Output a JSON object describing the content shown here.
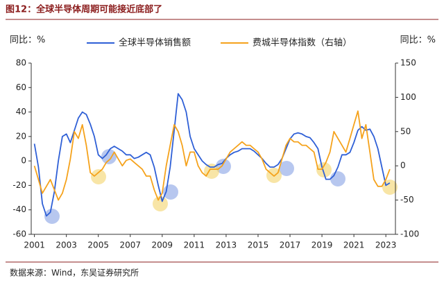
{
  "chart_data": {
    "type": "line",
    "title": "图12：全球半导体周期可能接近底部了",
    "y_label": "同比：%",
    "y2_label": "同比：%",
    "source": "数据来源：Wind，东吴证券研究所",
    "x": [
      2001,
      2001.25,
      2001.5,
      2001.75,
      2002,
      2002.25,
      2002.5,
      2002.75,
      2003,
      2003.25,
      2003.5,
      2003.75,
      2004,
      2004.25,
      2004.5,
      2004.75,
      2005,
      2005.25,
      2005.5,
      2005.75,
      2006,
      2006.25,
      2006.5,
      2006.75,
      2007,
      2007.25,
      2007.5,
      2007.75,
      2008,
      2008.25,
      2008.5,
      2008.75,
      2009,
      2009.25,
      2009.5,
      2009.75,
      2010,
      2010.25,
      2010.5,
      2010.75,
      2011,
      2011.25,
      2011.5,
      2011.75,
      2012,
      2012.25,
      2012.5,
      2012.75,
      2013,
      2013.25,
      2013.5,
      2013.75,
      2014,
      2014.25,
      2014.5,
      2014.75,
      2015,
      2015.25,
      2015.5,
      2015.75,
      2016,
      2016.25,
      2016.5,
      2016.75,
      2017,
      2017.25,
      2017.5,
      2017.75,
      2018,
      2018.25,
      2018.5,
      2018.75,
      2019,
      2019.25,
      2019.5,
      2019.75,
      2020,
      2020.25,
      2020.5,
      2020.75,
      2021,
      2021.25,
      2021.5,
      2021.75,
      2022,
      2022.25,
      2022.5,
      2022.75,
      2023,
      2023.25
    ],
    "series": [
      {
        "name": "全球半导体销售额",
        "color": "#2e5fd6",
        "axis": "y",
        "values": [
          14,
          -5,
          -35,
          -45,
          -42,
          -25,
          0,
          20,
          22,
          15,
          25,
          35,
          40,
          38,
          30,
          20,
          5,
          2,
          5,
          10,
          12,
          10,
          8,
          5,
          5,
          2,
          3,
          5,
          7,
          5,
          -5,
          -20,
          -33,
          -25,
          -5,
          25,
          55,
          50,
          40,
          20,
          10,
          5,
          0,
          -3,
          -5,
          -5,
          -3,
          -2,
          2,
          5,
          7,
          8,
          10,
          10,
          10,
          8,
          5,
          2,
          -2,
          -5,
          -5,
          -3,
          2,
          10,
          18,
          22,
          23,
          22,
          20,
          19,
          15,
          10,
          -5,
          -15,
          -15,
          -12,
          -5,
          5,
          5,
          7,
          15,
          25,
          28,
          25,
          26,
          20,
          10,
          -5,
          -20,
          -18
        ]
      },
      {
        "name": "费城半导体指数（右轴）",
        "color": "#f5a21b",
        "axis": "y2",
        "values": [
          0,
          -20,
          -40,
          -30,
          -20,
          -35,
          -50,
          -40,
          -20,
          10,
          50,
          40,
          60,
          30,
          -10,
          -15,
          -10,
          -5,
          5,
          10,
          20,
          10,
          0,
          8,
          10,
          5,
          0,
          -5,
          -15,
          -15,
          -35,
          -50,
          -40,
          0,
          30,
          60,
          50,
          30,
          0,
          20,
          20,
          0,
          -10,
          -15,
          -5,
          -5,
          -5,
          0,
          10,
          20,
          25,
          30,
          35,
          30,
          30,
          25,
          20,
          10,
          -5,
          -10,
          -15,
          -10,
          10,
          30,
          40,
          35,
          35,
          30,
          30,
          25,
          20,
          -5,
          -5,
          5,
          20,
          50,
          40,
          30,
          20,
          40,
          60,
          80,
          40,
          60,
          20,
          -20,
          -30,
          -30,
          -20,
          -5
        ]
      }
    ],
    "xlim": [
      2000.8,
      2023.6
    ],
    "xticks": [
      2001,
      2003,
      2005,
      2007,
      2009,
      2011,
      2013,
      2015,
      2017,
      2019,
      2021,
      2023
    ],
    "ylim": [
      -60,
      80
    ],
    "yticks": [
      -60,
      -40,
      -20,
      0,
      20,
      40,
      60,
      80
    ],
    "y2lim": [
      -100,
      150
    ],
    "y2ticks": [
      -100,
      -50,
      0,
      50,
      100,
      150
    ]
  }
}
